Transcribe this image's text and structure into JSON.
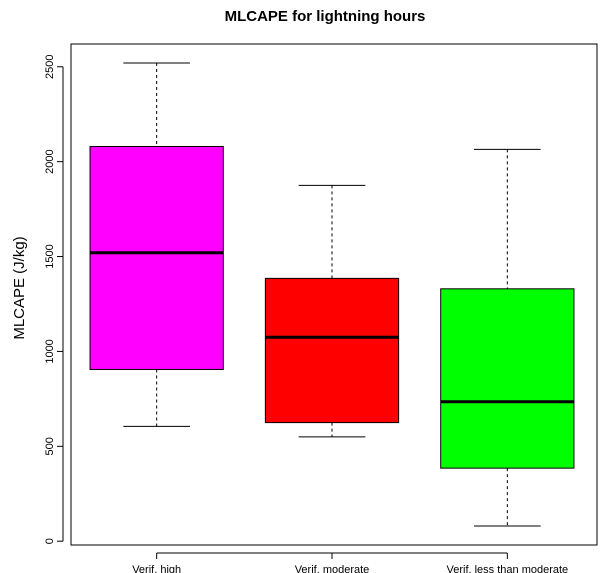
{
  "chart_data": {
    "type": "box",
    "title": "MLCAPE for lightning hours",
    "xlabel": "",
    "ylabel": "MLCAPE (J/kg)",
    "ylim": [
      -20,
      2620
    ],
    "yticks": [
      0,
      500,
      1000,
      1500,
      2000,
      2500
    ],
    "yticklabels": [
      "0",
      "500",
      "1000",
      "1500",
      "2000",
      "2500"
    ],
    "categories": [
      "Verif. high",
      "Verif. moderate",
      "Verif. less than moderate"
    ],
    "boxes": [
      {
        "category": "Verif. high",
        "whisker_low": 605,
        "q1": 905,
        "median": 1520,
        "q3": 2080,
        "whisker_high": 2520,
        "color": "#ff00ff"
      },
      {
        "category": "Verif. moderate",
        "whisker_low": 550,
        "q1": 625,
        "median": 1075,
        "q3": 1385,
        "whisker_high": 1875,
        "color": "#ff0000"
      },
      {
        "category": "Verif. less than moderate",
        "whisker_low": 80,
        "q1": 385,
        "median": 735,
        "q3": 1330,
        "whisker_high": 2065,
        "color": "#00ff00"
      }
    ],
    "grid": false,
    "legend": "none"
  }
}
